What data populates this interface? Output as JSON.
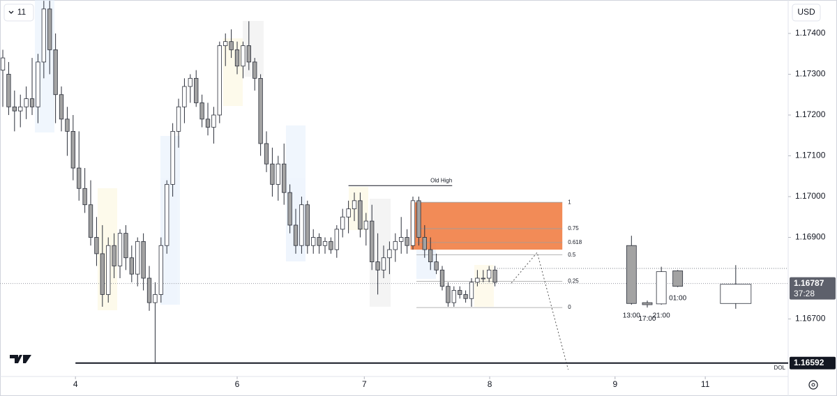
{
  "chart_data": {
    "type": "candlestick",
    "interval": "11",
    "currency": "USD",
    "xlim": [
      -0.48,
      134.05
    ],
    "xticks": [
      {
        "value": 12.4,
        "label": "4"
      },
      {
        "value": 40,
        "label": "6"
      },
      {
        "value": 61.7,
        "label": "7"
      },
      {
        "value": 83.1,
        "label": "8"
      },
      {
        "value": 104.5,
        "label": "9"
      },
      {
        "value": 119.9,
        "label": "11"
      }
    ],
    "ylim": [
      1.16559,
      1.17482
    ],
    "yticks": [
      {
        "value": 1.174,
        "label": "1.17400"
      },
      {
        "value": 1.173,
        "label": "1.17300"
      },
      {
        "value": 1.172,
        "label": "1.17200"
      },
      {
        "value": 1.171,
        "label": "1.17100"
      },
      {
        "value": 1.17,
        "label": "1.17000"
      },
      {
        "value": 1.169,
        "label": "1.16900"
      },
      {
        "value": 1.167,
        "label": "1.16700"
      }
    ],
    "up_color": "#ffffff",
    "down_color": "#a3a3a3",
    "x": [
      0,
      1,
      2,
      3,
      4,
      5,
      6,
      7,
      8,
      9,
      10,
      11,
      12,
      13,
      14,
      15,
      16,
      17,
      18,
      19,
      20,
      21,
      22,
      23,
      24,
      25,
      26,
      27,
      28,
      29,
      30,
      31,
      32,
      33,
      34,
      35,
      36,
      37,
      38,
      39,
      40,
      41,
      42,
      43,
      44,
      45,
      46,
      47,
      48,
      49,
      50,
      51,
      52,
      53,
      54,
      55,
      56,
      57,
      58,
      59,
      60,
      61,
      62,
      63,
      64,
      65,
      66,
      67,
      68,
      69,
      70,
      71,
      72,
      73,
      74,
      75,
      76,
      77,
      78,
      79,
      80,
      81,
      82,
      83,
      84
    ],
    "open": [
      1.1731,
      1.173,
      1.1722,
      1.1721,
      1.1722,
      1.1724,
      1.1722,
      1.1733,
      1.1746,
      1.1736,
      1.1725,
      1.1719,
      1.1716,
      1.1707,
      1.1702,
      1.1698,
      1.169,
      1.1686,
      1.1676,
      1.1688,
      1.1683,
      1.1691,
      1.1685,
      1.1681,
      1.1689,
      1.168,
      1.1674,
      1.1676,
      1.1688,
      1.1703,
      1.1716,
      1.1722,
      1.1727,
      1.1729,
      1.1723,
      1.1719,
      1.1717,
      1.172,
      1.1737,
      1.1738,
      1.1736,
      1.1732,
      1.1737,
      1.1733,
      1.1729,
      1.1713,
      1.1708,
      1.1703,
      1.1708,
      1.1701,
      1.1693,
      1.1688,
      1.1698,
      1.1688,
      1.169,
      1.1688,
      1.1689,
      1.1687,
      1.1692,
      1.1695,
      1.1697,
      1.1699,
      1.1692,
      1.1694,
      1.1684,
      1.1682,
      1.1685,
      1.1687,
      1.1689,
      1.169,
      1.1688,
      1.1699,
      1.169,
      1.1687,
      1.1684,
      1.1682,
      1.1678,
      1.1674,
      1.1677,
      1.1676,
      1.1675,
      1.1679,
      1.168,
      1.168,
      1.1682
    ],
    "high": [
      1.1736,
      1.1733,
      1.1726,
      1.1725,
      1.1727,
      1.1734,
      1.1735,
      1.1748,
      1.1748,
      1.174,
      1.1727,
      1.1722,
      1.172,
      1.1716,
      1.1707,
      1.1704,
      1.1695,
      1.1693,
      1.169,
      1.1691,
      1.1692,
      1.1693,
      1.1688,
      1.169,
      1.1691,
      1.1683,
      1.1679,
      1.169,
      1.1704,
      1.1718,
      1.1724,
      1.1729,
      1.173,
      1.1731,
      1.1725,
      1.1723,
      1.1722,
      1.1738,
      1.174,
      1.1741,
      1.1738,
      1.1738,
      1.1743,
      1.1734,
      1.173,
      1.1716,
      1.1712,
      1.171,
      1.1713,
      1.1703,
      1.1697,
      1.17,
      1.1699,
      1.1692,
      1.1691,
      1.169,
      1.169,
      1.1693,
      1.1697,
      1.1699,
      1.1701,
      1.1701,
      1.1696,
      1.1698,
      1.1691,
      1.1688,
      1.1689,
      1.1691,
      1.1695,
      1.1692,
      1.17,
      1.17,
      1.1693,
      1.169,
      1.1686,
      1.1683,
      1.1679,
      1.1678,
      1.1678,
      1.1677,
      1.168,
      1.1682,
      1.1682,
      1.1683,
      1.1683
    ],
    "low": [
      1.1722,
      1.172,
      1.1716,
      1.1717,
      1.1719,
      1.172,
      1.1718,
      1.1729,
      1.173,
      1.1718,
      1.1716,
      1.171,
      1.1704,
      1.1699,
      1.1696,
      1.1688,
      1.1683,
      1.1673,
      1.1674,
      1.168,
      1.168,
      1.1682,
      1.1679,
      1.1678,
      1.1677,
      1.1672,
      1.1659,
      1.1674,
      1.1686,
      1.17,
      1.1712,
      1.1718,
      1.1723,
      1.1722,
      1.1717,
      1.1715,
      1.1713,
      1.1718,
      1.1732,
      1.1734,
      1.173,
      1.1729,
      1.1731,
      1.1726,
      1.171,
      1.1706,
      1.17,
      1.1699,
      1.1698,
      1.1691,
      1.1686,
      1.1686,
      1.1686,
      1.1686,
      1.1686,
      1.1686,
      1.1686,
      1.1685,
      1.169,
      1.1691,
      1.1694,
      1.169,
      1.1688,
      1.1682,
      1.1676,
      1.168,
      1.1681,
      1.1684,
      1.1686,
      1.1686,
      1.1687,
      1.1688,
      1.1685,
      1.1682,
      1.1681,
      1.1677,
      1.1673,
      1.1673,
      1.1675,
      1.1674,
      1.1673,
      1.1678,
      1.1679,
      1.1679,
      1.1678
    ],
    "close": [
      1.1734,
      1.1722,
      1.1721,
      1.1722,
      1.1724,
      1.1722,
      1.1733,
      1.1746,
      1.1736,
      1.1725,
      1.1719,
      1.1716,
      1.1707,
      1.1702,
      1.1698,
      1.169,
      1.1686,
      1.1676,
      1.1688,
      1.1683,
      1.1691,
      1.1685,
      1.1681,
      1.1689,
      1.168,
      1.1674,
      1.1676,
      1.1688,
      1.1703,
      1.1716,
      1.1722,
      1.1727,
      1.1729,
      1.1723,
      1.1719,
      1.1717,
      1.172,
      1.1737,
      1.1738,
      1.1736,
      1.1732,
      1.1737,
      1.1733,
      1.1729,
      1.1713,
      1.1708,
      1.1703,
      1.1708,
      1.1701,
      1.1693,
      1.1688,
      1.1698,
      1.1688,
      1.169,
      1.1688,
      1.1689,
      1.1687,
      1.1692,
      1.1695,
      1.1697,
      1.1699,
      1.1692,
      1.1694,
      1.1684,
      1.1682,
      1.1685,
      1.1687,
      1.1689,
      1.169,
      1.1688,
      1.1699,
      1.169,
      1.1687,
      1.1684,
      1.1682,
      1.1678,
      1.1674,
      1.1677,
      1.1676,
      1.1675,
      1.1679,
      1.168,
      1.168,
      1.1682,
      1.1679
    ],
    "htf": {
      "x": [
        107.3,
        110,
        112.4,
        115.2,
        125.1
      ],
      "open": [
        1.1688,
        1.1674,
        1.16737,
        1.16818,
        1.16738
      ],
      "high": [
        1.16904,
        1.16745,
        1.16828,
        1.1682,
        1.16832
      ],
      "low": [
        1.16735,
        1.16728,
        1.16735,
        1.16778,
        1.16725
      ],
      "close": [
        1.16738,
        1.16735,
        1.16816,
        1.1678,
        1.16785
      ],
      "labels": [
        "13:00",
        "17:00",
        "21:00",
        "01:00",
        null
      ]
    },
    "old_high": {
      "label": "Old High",
      "price": 1.17027,
      "xrange": [
        59,
        76.7
      ]
    },
    "zone": {
      "xrange": [
        69.6,
        95.5
      ],
      "yrange": [
        1.1687,
        1.16986
      ],
      "color": "#f0773a"
    },
    "fib": {
      "high": 1.16986,
      "low": 1.16728,
      "xrange": [
        70.6,
        95.5
      ],
      "levels": [
        1,
        0.75,
        0.618,
        0.5,
        0.25,
        0
      ]
    },
    "resistance_line": {
      "price": 1.16824,
      "xrange": [
        84.4,
        134.05
      ]
    },
    "projection": {
      "x": [
        86.8,
        91.2,
        96.5
      ],
      "y": [
        1.16788,
        1.16863,
        1.16576
      ]
    },
    "dol": {
      "label": "DOL",
      "price": 1.16592,
      "xrange": [
        12.4,
        134.05
      ]
    },
    "last_price": {
      "price": 1.16787,
      "countdown": "37:28"
    }
  }
}
